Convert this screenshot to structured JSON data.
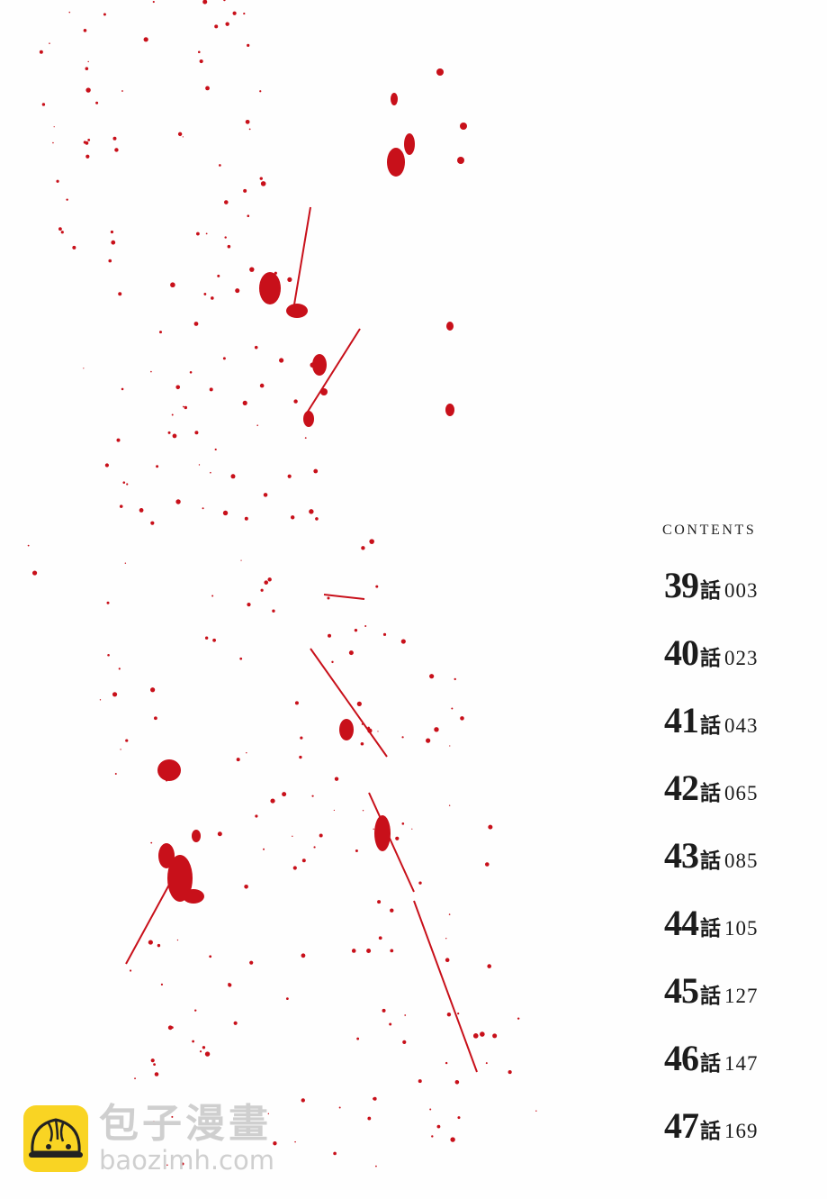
{
  "contents": {
    "title": "CONTENTS",
    "chapter_suffix": "話",
    "entries": [
      {
        "chapter": "39",
        "page": "003"
      },
      {
        "chapter": "40",
        "page": "023"
      },
      {
        "chapter": "41",
        "page": "043"
      },
      {
        "chapter": "42",
        "page": "065"
      },
      {
        "chapter": "43",
        "page": "085"
      },
      {
        "chapter": "44",
        "page": "105"
      },
      {
        "chapter": "45",
        "page": "127"
      },
      {
        "chapter": "46",
        "page": "147"
      },
      {
        "chapter": "47",
        "page": "169"
      }
    ]
  },
  "watermark": {
    "name": "包子漫畫",
    "url": "baozimh.com",
    "logo_color": "#f9d423"
  },
  "colors": {
    "splatter": "#c8101a",
    "background": "#fefefe"
  }
}
